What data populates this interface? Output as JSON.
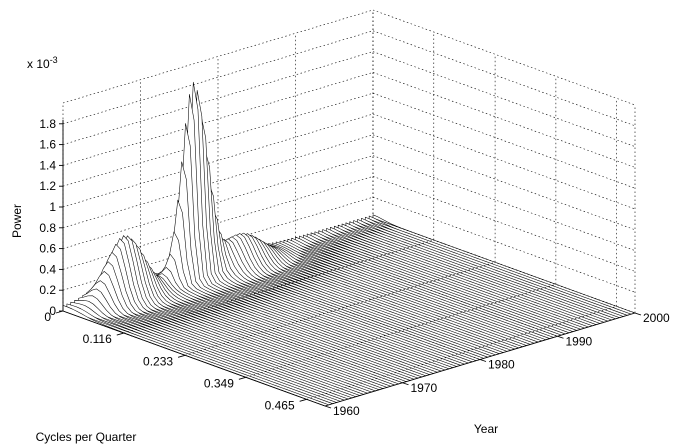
{
  "chart_data": {
    "type": "surface",
    "zlabel": "Power",
    "xlabel": "Cycles per Quarter",
    "ylabel": "Year",
    "zscale_label": "x 10",
    "zscale_exponent": "-3",
    "x_ticks": [
      "0",
      "0.116",
      "0.233",
      "0.349",
      "0.465"
    ],
    "x_tick_values": [
      0,
      0.116,
      0.233,
      0.349,
      0.465
    ],
    "x_range": [
      0,
      0.5
    ],
    "y_ticks": [
      "1960",
      "1970",
      "1980",
      "1990",
      "2000"
    ],
    "y_tick_values": [
      1960,
      1970,
      1980,
      1990,
      2000
    ],
    "y_range": [
      1960,
      2000
    ],
    "z_ticks": [
      "0",
      "0.2",
      "0.4",
      "0.6",
      "0.8",
      "1",
      "1.2",
      "1.4",
      "1.6",
      "1.8"
    ],
    "z_tick_values": [
      0,
      0.2,
      0.4,
      0.6,
      0.8,
      1.0,
      1.2,
      1.4,
      1.6,
      1.8
    ],
    "z_range": [
      0,
      2.0
    ],
    "grid": true,
    "peaks": [
      {
        "cycles_per_quarter": 0.0,
        "year": 1960,
        "power": 0.04
      },
      {
        "cycles_per_quarter": 0.03,
        "year": 1966,
        "power": 0.6
      },
      {
        "cycles_per_quarter": 0.03,
        "year": 1975,
        "power": 1.95
      },
      {
        "cycles_per_quarter": 0.03,
        "year": 1981,
        "power": 0.28
      }
    ]
  }
}
